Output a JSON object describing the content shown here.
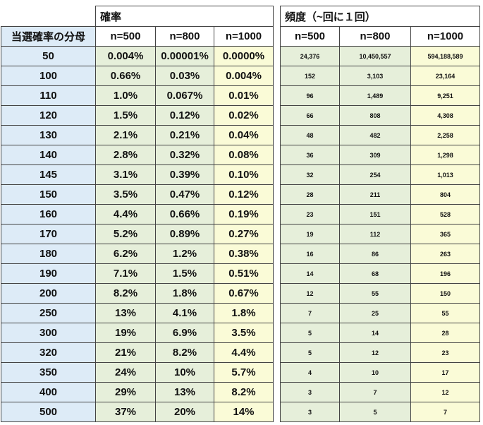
{
  "header": {
    "prob_title": "確率",
    "freq_title": "頻度（~回に１回）",
    "denominator_label": "当選確率の分母",
    "prob_columns": [
      "n=500",
      "n=800",
      "n=1000"
    ],
    "freq_columns": [
      "n=500",
      "n=800",
      "n=1000"
    ]
  },
  "rows": [
    [
      "50",
      "0.004%",
      "0.00001%",
      "0.0000%",
      "24,376",
      "10,450,557",
      "594,188,589"
    ],
    [
      "100",
      "0.66%",
      "0.03%",
      "0.004%",
      "152",
      "3,103",
      "23,164"
    ],
    [
      "110",
      "1.0%",
      "0.067%",
      "0.01%",
      "96",
      "1,489",
      "9,251"
    ],
    [
      "120",
      "1.5%",
      "0.12%",
      "0.02%",
      "66",
      "808",
      "4,308"
    ],
    [
      "130",
      "2.1%",
      "0.21%",
      "0.04%",
      "48",
      "482",
      "2,258"
    ],
    [
      "140",
      "2.8%",
      "0.32%",
      "0.08%",
      "36",
      "309",
      "1,298"
    ],
    [
      "145",
      "3.1%",
      "0.39%",
      "0.10%",
      "32",
      "254",
      "1,013"
    ],
    [
      "150",
      "3.5%",
      "0.47%",
      "0.12%",
      "28",
      "211",
      "804"
    ],
    [
      "160",
      "4.4%",
      "0.66%",
      "0.19%",
      "23",
      "151",
      "528"
    ],
    [
      "170",
      "5.2%",
      "0.89%",
      "0.27%",
      "19",
      "112",
      "365"
    ],
    [
      "180",
      "6.2%",
      "1.2%",
      "0.38%",
      "16",
      "86",
      "263"
    ],
    [
      "190",
      "7.1%",
      "1.5%",
      "0.51%",
      "14",
      "68",
      "196"
    ],
    [
      "200",
      "8.2%",
      "1.8%",
      "0.67%",
      "12",
      "55",
      "150"
    ],
    [
      "250",
      "13%",
      "4.1%",
      "1.8%",
      "7",
      "25",
      "55"
    ],
    [
      "300",
      "19%",
      "6.9%",
      "3.5%",
      "5",
      "14",
      "28"
    ],
    [
      "320",
      "21%",
      "8.2%",
      "4.4%",
      "5",
      "12",
      "23"
    ],
    [
      "350",
      "24%",
      "10%",
      "5.7%",
      "4",
      "10",
      "17"
    ],
    [
      "400",
      "29%",
      "13%",
      "8.2%",
      "3",
      "7",
      "12"
    ],
    [
      "500",
      "37%",
      "20%",
      "14%",
      "3",
      "5",
      "7"
    ]
  ]
}
